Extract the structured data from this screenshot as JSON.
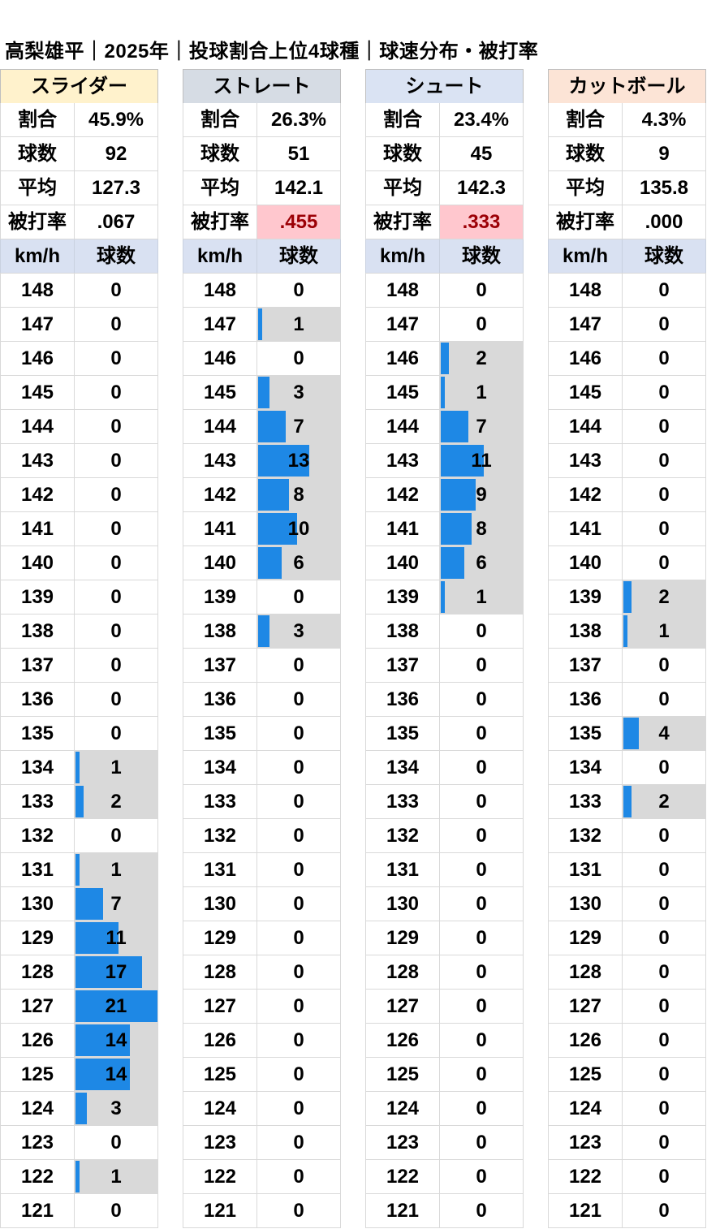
{
  "title": "高梨雄平｜2025年｜投球割合上位4球種｜球速分布・被打率",
  "stat_labels": {
    "ratio": "割合",
    "count": "球数",
    "avg": "平均",
    "hit": "被打率"
  },
  "dist_headers": {
    "speed": "km/h",
    "count": "球数"
  },
  "colors": {
    "bar": "#1e88e5",
    "bar_background": "#d9d9d9",
    "highlight_bg": "#ffc7ce",
    "highlight_text": "#9c0006"
  },
  "chart_data": {
    "type": "bar",
    "title": "高梨雄平｜2025年｜投球割合上位4球種｜球速分布・被打率",
    "categories": [
      "148",
      "147",
      "146",
      "145",
      "144",
      "143",
      "142",
      "141",
      "140",
      "139",
      "138",
      "137",
      "136",
      "135",
      "134",
      "133",
      "132",
      "131",
      "130",
      "129",
      "128",
      "127",
      "126",
      "125",
      "124",
      "123",
      "122",
      "121"
    ],
    "max_count": 21,
    "series": [
      {
        "name": "スライダー",
        "header_color": "#fff2cc",
        "ratio": "45.9%",
        "count": "92",
        "avg": "127.3",
        "hit": ".067",
        "hit_highlight": false,
        "values": [
          0,
          0,
          0,
          0,
          0,
          0,
          0,
          0,
          0,
          0,
          0,
          0,
          0,
          0,
          1,
          2,
          0,
          1,
          7,
          11,
          17,
          21,
          14,
          14,
          3,
          0,
          1,
          0
        ]
      },
      {
        "name": "ストレート",
        "header_color": "#d6dce4",
        "ratio": "26.3%",
        "count": "51",
        "avg": "142.1",
        "hit": ".455",
        "hit_highlight": true,
        "values": [
          0,
          1,
          0,
          3,
          7,
          13,
          8,
          10,
          6,
          0,
          3,
          0,
          0,
          0,
          0,
          0,
          0,
          0,
          0,
          0,
          0,
          0,
          0,
          0,
          0,
          0,
          0,
          0
        ]
      },
      {
        "name": "シュート",
        "header_color": "#dae3f3",
        "ratio": "23.4%",
        "count": "45",
        "avg": "142.3",
        "hit": ".333",
        "hit_highlight": true,
        "values": [
          0,
          0,
          2,
          1,
          7,
          11,
          9,
          8,
          6,
          1,
          0,
          0,
          0,
          0,
          0,
          0,
          0,
          0,
          0,
          0,
          0,
          0,
          0,
          0,
          0,
          0,
          0,
          0
        ]
      },
      {
        "name": "カットボール",
        "header_color": "#fce4d6",
        "ratio": "4.3%",
        "count": "9",
        "avg": "135.8",
        "hit": ".000",
        "hit_highlight": false,
        "values": [
          0,
          0,
          0,
          0,
          0,
          0,
          0,
          0,
          0,
          2,
          1,
          0,
          0,
          4,
          0,
          2,
          0,
          0,
          0,
          0,
          0,
          0,
          0,
          0,
          0,
          0,
          0,
          0
        ]
      }
    ]
  }
}
